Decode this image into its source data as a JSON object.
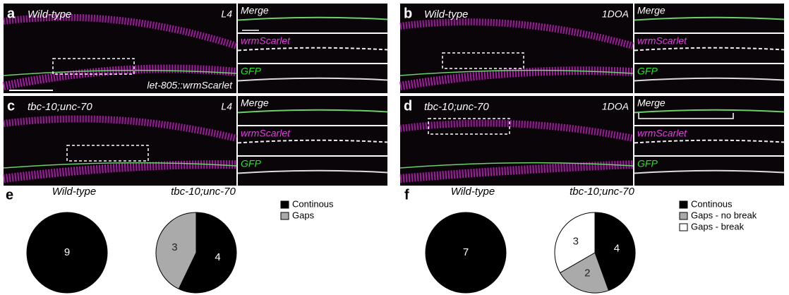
{
  "image_panels": [
    {
      "letter": "a",
      "genotype": "Wild-type",
      "stage": "L4",
      "marker": "let-805::wrmScarlet",
      "insets": [
        "Merge",
        "wrmScarlet",
        "GFP"
      ]
    },
    {
      "letter": "b",
      "genotype": "Wild-type",
      "stage": "1DOA",
      "insets": [
        "Merge",
        "wrmScarlet",
        "GFP"
      ]
    },
    {
      "letter": "c",
      "genotype": "tbc-10;unc-70",
      "stage": "L4",
      "insets": [
        "Merge",
        "wrmScarlet",
        "GFP"
      ]
    },
    {
      "letter": "d",
      "genotype": "tbc-10;unc-70",
      "stage": "1DOA",
      "insets": [
        "Merge",
        "wrmScarlet",
        "GFP"
      ]
    }
  ],
  "pie_panels": [
    {
      "letter": "e",
      "series": [
        {
          "name": "Continous",
          "color": "#000000"
        },
        {
          "name": "Gaps",
          "color": "#aaaaaa"
        }
      ],
      "pies": [
        {
          "title": "Wild-type",
          "values": [
            9
          ]
        },
        {
          "title": "tbc-10;unc-70",
          "values": [
            4,
            3
          ]
        }
      ]
    },
    {
      "letter": "f",
      "series": [
        {
          "name": "Continous",
          "color": "#000000"
        },
        {
          "name": "Gaps - no break",
          "color": "#aaaaaa"
        },
        {
          "name": "Gaps - break",
          "color": "#ffffff"
        }
      ],
      "pies": [
        {
          "title": "Wild-type",
          "values": [
            7
          ]
        },
        {
          "title": "tbc-10;unc-70",
          "values": [
            4,
            2,
            3
          ]
        }
      ]
    }
  ]
}
